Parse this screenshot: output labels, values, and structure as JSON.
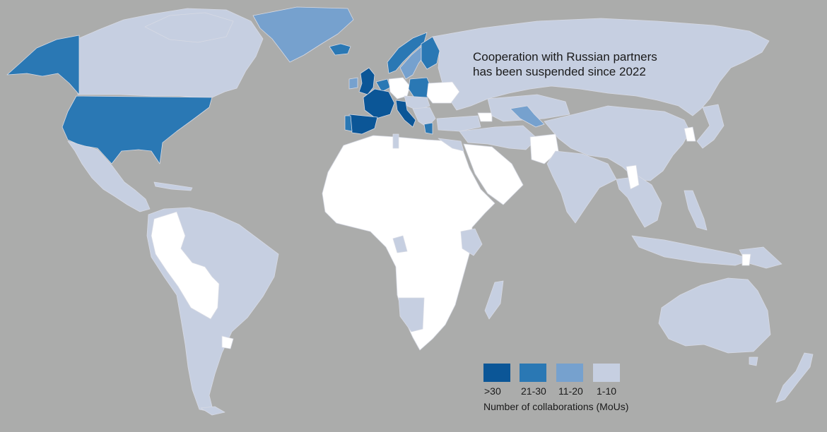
{
  "annotation": {
    "line1": "Cooperation with Russian partners",
    "line2": "has been suspended since 2022"
  },
  "legend": {
    "title": "Number of collaborations (MoUs)",
    "classes": [
      {
        "label": ">30",
        "color": "#0b5697"
      },
      {
        "label": "21-30",
        "color": "#2a78b4"
      },
      {
        "label": "11-20",
        "color": "#76a1ce"
      },
      {
        "label": "1-10",
        "color": "#c6cfe1"
      }
    ]
  },
  "colors": {
    "background": "#abacab",
    "no_data": "#ffffff",
    "border": "#d7dae4"
  }
}
